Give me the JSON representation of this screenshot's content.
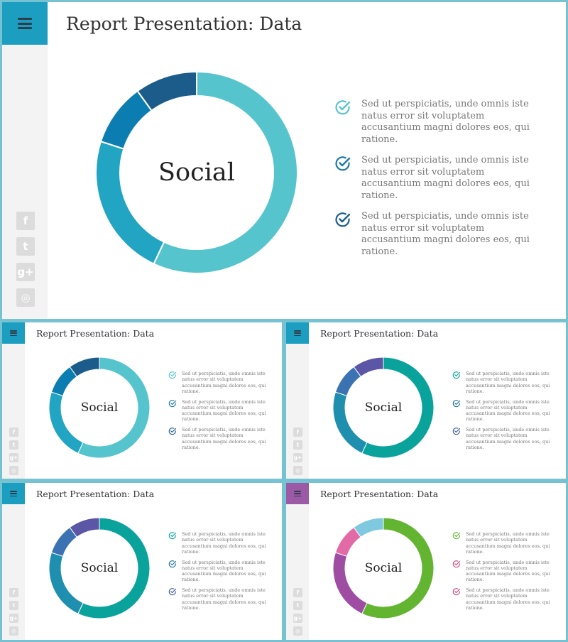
{
  "slides": [
    {
      "title": "Report Presentation: Data",
      "menu_color": "#1b9ec0",
      "center_label": "Social",
      "segments": [
        {
          "value": 57,
          "color": "#56c4cc"
        },
        {
          "value": 23,
          "color": "#21a5c2"
        },
        {
          "value": 10,
          "color": "#0b7db1"
        },
        {
          "value": 10,
          "color": "#1b5c8a"
        }
      ],
      "bullets": [
        {
          "text": "Sed ut perspiciatis, unde omnis iste natus error sit voluptatem accusantium magni dolores eos, qui ratione.",
          "color": "#56c4cc"
        },
        {
          "text": "Sed ut perspiciatis, unde omnis iste natus error sit voluptatem accusantium magni dolores eos, qui ratione.",
          "color": "#1b7aa6"
        },
        {
          "text": "Sed ut perspiciatis, unde omnis iste natus error sit voluptatem accusantium magni dolores eos, qui ratione.",
          "color": "#1b5c8a"
        }
      ],
      "social_icons": [
        "facebook-icon",
        "twitter-icon",
        "google-plus-icon",
        "instagram-icon"
      ]
    },
    {
      "title": "Report Presentation: Data",
      "menu_color": "#1b9ec0",
      "center_label": "Social",
      "segments": [
        {
          "value": 57,
          "color": "#56c4cc"
        },
        {
          "value": 23,
          "color": "#21a5c2"
        },
        {
          "value": 10,
          "color": "#0b7db1"
        },
        {
          "value": 10,
          "color": "#1b5c8a"
        }
      ],
      "bullets": [
        {
          "text": "Sed ut perspiciatis, unde omnis iste natus error sit voluptatem accusantium magni dolores eos, qui ratione.",
          "color": "#56c4cc"
        },
        {
          "text": "Sed ut perspiciatis, unde omnis iste natus error sit voluptatem accusantium magni dolores eos, qui ratione.",
          "color": "#1b7aa6"
        },
        {
          "text": "Sed ut perspiciatis, unde omnis iste natus error sit voluptatem accusantium magni dolores eos, qui ratione.",
          "color": "#1b5c8a"
        }
      ],
      "social_icons": [
        "facebook-icon",
        "twitter-icon",
        "google-plus-icon",
        "instagram-icon"
      ]
    },
    {
      "title": "Report Presentation: Data",
      "menu_color": "#1b9ec0",
      "center_label": "Social",
      "segments": [
        {
          "value": 57,
          "color": "#0aa39c"
        },
        {
          "value": 23,
          "color": "#1e8fae"
        },
        {
          "value": 10,
          "color": "#3b73b2"
        },
        {
          "value": 10,
          "color": "#5b56a6"
        }
      ],
      "bullets": [
        {
          "text": "Sed ut perspiciatis, unde omnis iste natus error sit voluptatem accusantium magni dolores eos, qui ratione.",
          "color": "#0aa39c"
        },
        {
          "text": "Sed ut perspiciatis, unde omnis iste natus error sit voluptatem accusantium magni dolores eos, qui ratione.",
          "color": "#1e6f95"
        },
        {
          "text": "Sed ut perspiciatis, unde omnis iste natus error sit voluptatem accusantium magni dolores eos, qui ratione.",
          "color": "#3b5c8f"
        }
      ],
      "social_icons": [
        "facebook-icon",
        "twitter-icon",
        "google-plus-icon",
        "instagram-icon"
      ]
    },
    {
      "title": "Report Presentation: Data",
      "menu_color": "#1b9ec0",
      "center_label": "Social",
      "segments": [
        {
          "value": 57,
          "color": "#0aa39c"
        },
        {
          "value": 23,
          "color": "#1e8fae"
        },
        {
          "value": 10,
          "color": "#3b73b2"
        },
        {
          "value": 10,
          "color": "#5b56a6"
        }
      ],
      "bullets": [
        {
          "text": "Sed ut perspiciatis, unde omnis iste natus error sit voluptatem accusantium magni dolores eos, qui ratione.",
          "color": "#0aa39c"
        },
        {
          "text": "Sed ut perspiciatis, unde omnis iste natus error sit voluptatem accusantium magni dolores eos, qui ratione.",
          "color": "#1e6f95"
        },
        {
          "text": "Sed ut perspiciatis, unde omnis iste natus error sit voluptatem accusantium magni dolores eos, qui ratione.",
          "color": "#3b5c8f"
        }
      ],
      "social_icons": [
        "facebook-icon",
        "twitter-icon",
        "google-plus-icon",
        "instagram-icon"
      ]
    },
    {
      "title": "Report Presentation: Data",
      "menu_color": "#9b59a6",
      "center_label": "Social",
      "segments": [
        {
          "value": 57,
          "color": "#63b531"
        },
        {
          "value": 23,
          "color": "#9e4da3"
        },
        {
          "value": 10,
          "color": "#e26aa7"
        },
        {
          "value": 10,
          "color": "#7ec8e0"
        }
      ],
      "bullets": [
        {
          "text": "Sed ut perspiciatis, unde omnis iste natus error sit voluptatem accusantium magni dolores eos, qui ratione.",
          "color": "#63b531"
        },
        {
          "text": "Sed ut perspiciatis, unde omnis iste natus error sit voluptatem accusantium magni dolores eos, qui ratione.",
          "color": "#c8467e"
        },
        {
          "text": "Sed ut perspiciatis, unde omnis iste natus error sit voluptatem accusantium magni dolores eos, qui ratione.",
          "color": "#c8467e"
        }
      ],
      "social_icons": [
        "facebook-icon",
        "twitter-icon",
        "google-plus-icon",
        "instagram-icon"
      ]
    }
  ]
}
